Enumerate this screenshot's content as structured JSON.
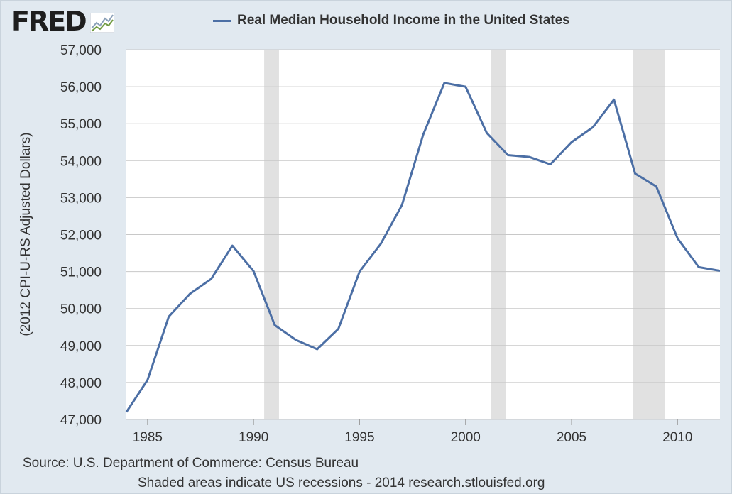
{
  "logo": {
    "text": "FRED",
    "icon": "line-chart-icon"
  },
  "chart_data": {
    "type": "line",
    "title": "",
    "xlabel": "",
    "ylabel": "(2012 CPI-U-RS Adjusted Dollars)",
    "xlim": [
      1984,
      2012
    ],
    "ylim": [
      47000,
      57000
    ],
    "grid": true,
    "legend_placement": "top-center",
    "series": [
      {
        "name": "Real Median Household Income in the United States",
        "color": "#4c6fa5",
        "x": [
          1984,
          1985,
          1986,
          1987,
          1988,
          1989,
          1990,
          1991,
          1992,
          1993,
          1994,
          1995,
          1996,
          1997,
          1998,
          1999,
          2000,
          2001,
          2002,
          2003,
          2004,
          2005,
          2006,
          2007,
          2008,
          2009,
          2010,
          2011,
          2012
        ],
        "values": [
          47200,
          48070,
          49780,
          50400,
          50800,
          51700,
          51010,
          49550,
          49150,
          48900,
          49450,
          51000,
          51750,
          52800,
          54700,
          56100,
          56000,
          54750,
          54150,
          54100,
          53900,
          54500,
          54900,
          55650,
          53650,
          53300,
          51900,
          51120,
          51020
        ]
      }
    ],
    "y_ticks": [
      "47,000",
      "48,000",
      "49,000",
      "50,000",
      "51,000",
      "52,000",
      "53,000",
      "54,000",
      "55,000",
      "56,000",
      "57,000"
    ],
    "y_tick_values": [
      47000,
      48000,
      49000,
      50000,
      51000,
      52000,
      53000,
      54000,
      55000,
      56000,
      57000
    ],
    "x_ticks": [
      "1985",
      "1990",
      "1995",
      "2000",
      "2005",
      "2010"
    ],
    "x_tick_values": [
      1985,
      1990,
      1995,
      2000,
      2005,
      2010
    ],
    "recessions": [
      [
        1990.5,
        1991.2
      ],
      [
        2001.2,
        2001.9
      ],
      [
        2007.9,
        2009.4
      ]
    ],
    "recession_color": "#e1e1e1",
    "source": "Source: U.S. Department of Commerce: Census Bureau",
    "note": "Shaded areas indicate US recessions - 2014 research.stlouisfed.org"
  }
}
